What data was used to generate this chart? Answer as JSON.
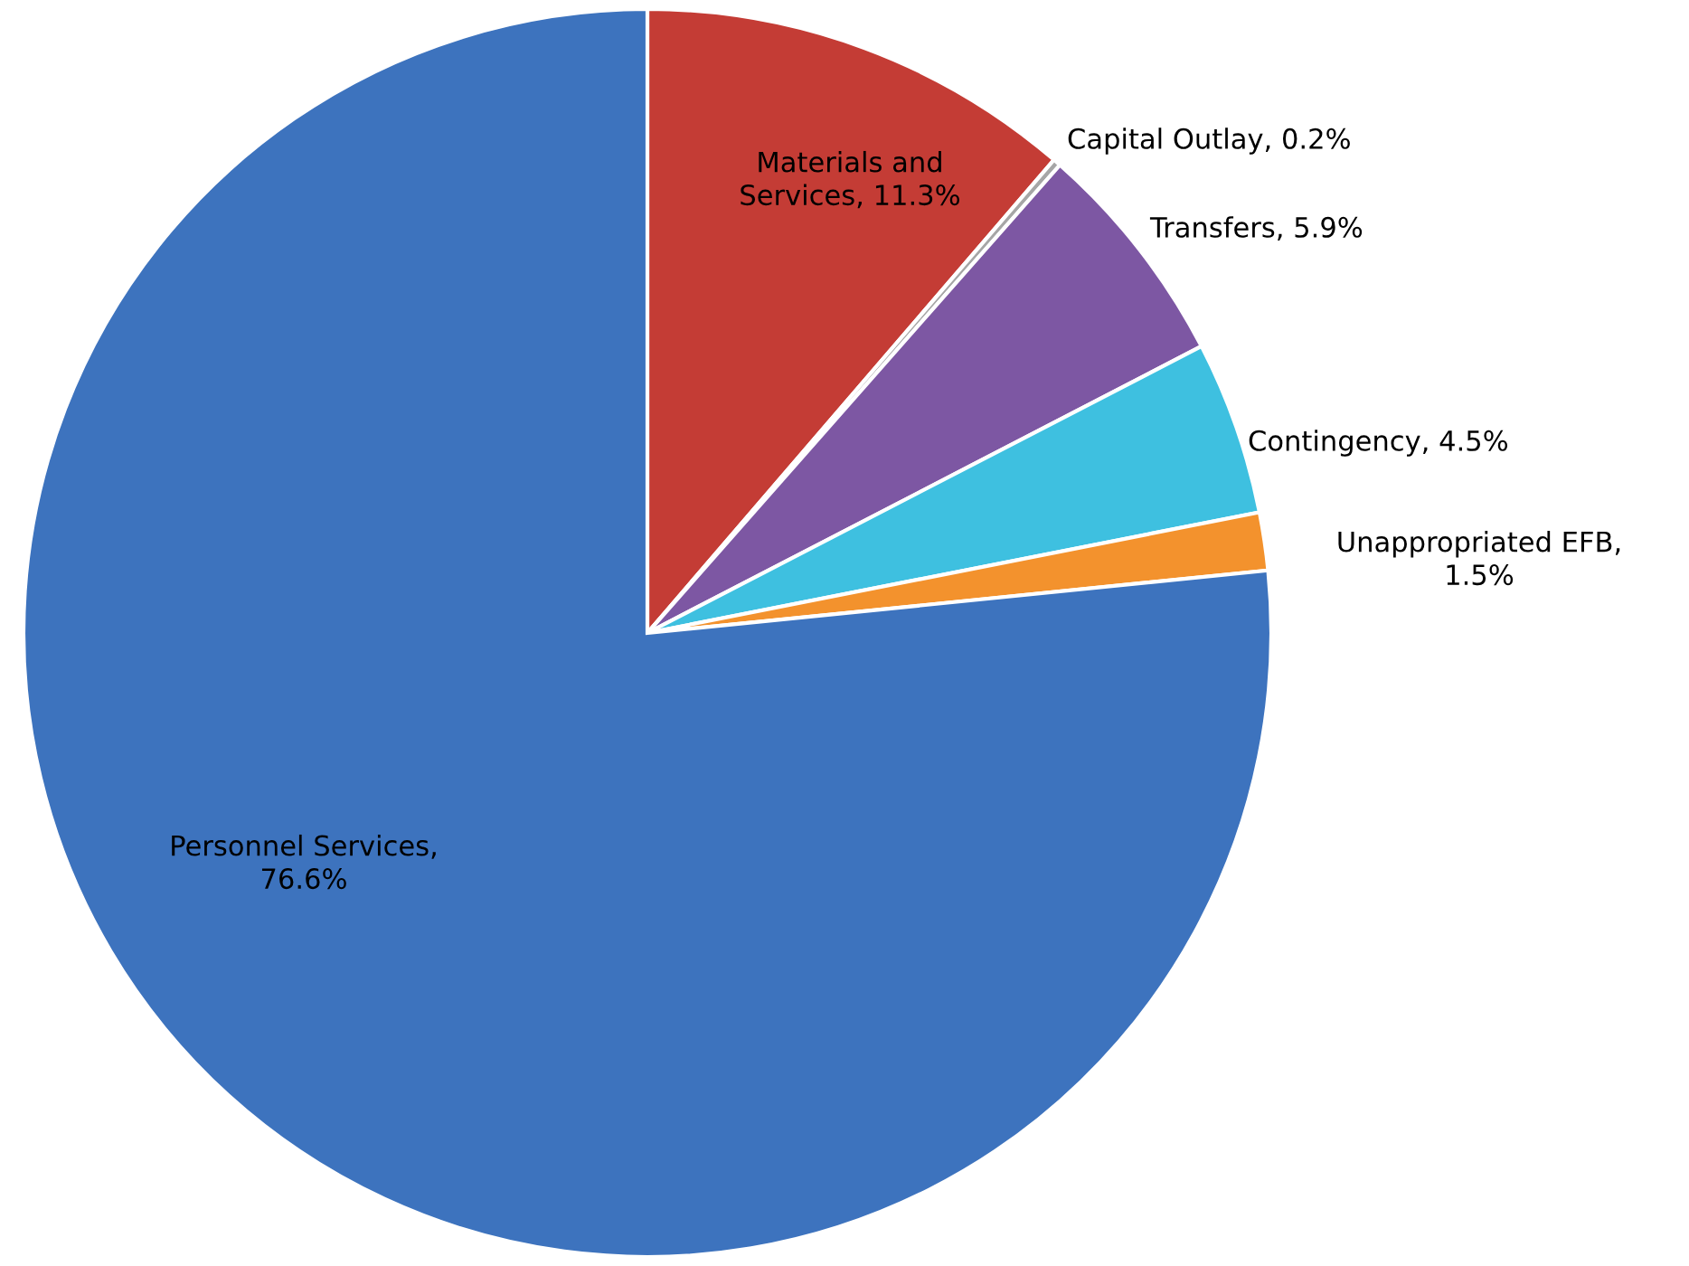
{
  "chart_data": {
    "type": "pie",
    "categories": [
      "Materials and Services, 11.3%",
      "Capital Outlay, 0.2%",
      "Transfers, 5.9%",
      "Contingency, 4.5%",
      "Unappropriated EFB, 1.5%",
      "Personnel Services, 76.6%"
    ],
    "values": [
      11.3,
      0.2,
      5.9,
      4.5,
      1.5,
      76.6
    ],
    "colors": [
      "#c43c35",
      "#a6a6a6",
      "#7d57a3",
      "#3ec0e0",
      "#f3922d",
      "#3d73be"
    ]
  }
}
